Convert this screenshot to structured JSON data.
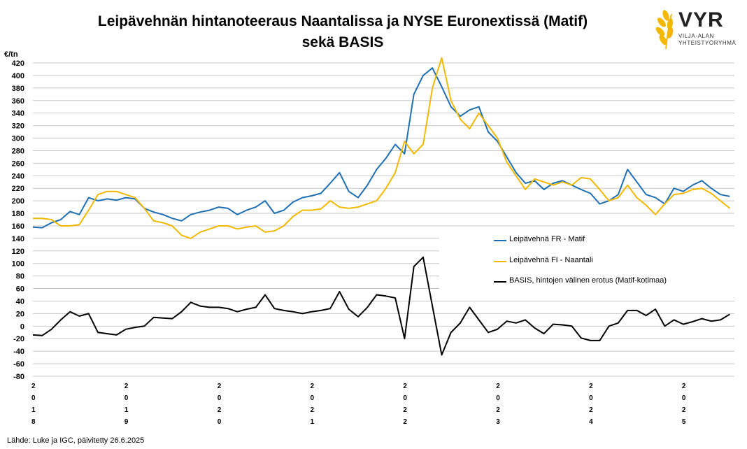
{
  "title_line1": "Leipävehnän hintanoteeraus Naantalissa ja NYSE Euronextissä (Matif)",
  "title_line2": "sekä BASIS",
  "logo": {
    "main": "VYR",
    "sub1": "VILJA-ALAN",
    "sub2": "YHTEISTYÖRYHMÄ",
    "color": "#F5B800"
  },
  "source": "Lähde: Luke ja IGC, päivitetty 26.6.2025",
  "chart_data": {
    "type": "line",
    "title": "Leipävehnän hintanoteeraus Naantalissa ja NYSE Euronextissä (Matif) sekä BASIS",
    "ylabel": "€/tn",
    "xlabel": "",
    "ylim": [
      -80,
      420
    ],
    "yticks": [
      "420",
      "400",
      "380",
      "360",
      "340",
      "320",
      "300",
      "280",
      "260",
      "240",
      "220",
      "200",
      "180",
      "160",
      "140",
      "120",
      "100",
      "80",
      "60",
      "40",
      "20",
      "0",
      "-20",
      "-40",
      "-60",
      "-80"
    ],
    "x_tick_labels": [
      "2018",
      "2019",
      "2020",
      "2021",
      "2022",
      "2023",
      "2024",
      "2025"
    ],
    "x": [
      2018.0,
      2018.1,
      2018.2,
      2018.3,
      2018.4,
      2018.5,
      2018.6,
      2018.7,
      2018.8,
      2018.9,
      2019.0,
      2019.1,
      2019.2,
      2019.3,
      2019.4,
      2019.5,
      2019.6,
      2019.7,
      2019.8,
      2019.9,
      2020.0,
      2020.1,
      2020.2,
      2020.3,
      2020.4,
      2020.5,
      2020.6,
      2020.7,
      2020.8,
      2020.9,
      2021.0,
      2021.1,
      2021.2,
      2021.3,
      2021.4,
      2021.5,
      2021.6,
      2021.7,
      2021.8,
      2021.9,
      2022.0,
      2022.1,
      2022.2,
      2022.3,
      2022.4,
      2022.5,
      2022.6,
      2022.7,
      2022.8,
      2022.9,
      2023.0,
      2023.1,
      2023.2,
      2023.3,
      2023.4,
      2023.5,
      2023.6,
      2023.7,
      2023.8,
      2023.9,
      2024.0,
      2024.1,
      2024.2,
      2024.3,
      2024.4,
      2024.5,
      2024.6,
      2024.7,
      2024.8,
      2024.9,
      2025.0,
      2025.1,
      2025.2,
      2025.3,
      2025.4,
      2025.5
    ],
    "series": [
      {
        "name": "Leipävehnä FR - Matif",
        "color": "#1F6FB5",
        "values": [
          158,
          157,
          165,
          170,
          183,
          178,
          205,
          200,
          203,
          201,
          205,
          203,
          188,
          182,
          178,
          172,
          168,
          178,
          182,
          185,
          190,
          188,
          178,
          185,
          190,
          200,
          180,
          185,
          198,
          205,
          208,
          212,
          228,
          245,
          215,
          205,
          225,
          250,
          268,
          290,
          275,
          370,
          400,
          412,
          382,
          350,
          335,
          345,
          350,
          310,
          295,
          270,
          245,
          228,
          232,
          218,
          228,
          232,
          225,
          218,
          212,
          195,
          200,
          210,
          250,
          230,
          210,
          205,
          195,
          220,
          215,
          225,
          232,
          220,
          210,
          207
        ]
      },
      {
        "name": "Leipävehnä FI - Naantali",
        "color": "#F2B900",
        "values": [
          172,
          172,
          170,
          160,
          160,
          162,
          185,
          210,
          215,
          215,
          210,
          205,
          188,
          168,
          165,
          160,
          145,
          140,
          150,
          155,
          160,
          160,
          155,
          158,
          160,
          150,
          152,
          160,
          175,
          185,
          185,
          187,
          200,
          190,
          188,
          190,
          195,
          200,
          220,
          245,
          295,
          275,
          290,
          380,
          428,
          360,
          330,
          315,
          340,
          320,
          300,
          262,
          240,
          218,
          235,
          230,
          225,
          230,
          225,
          237,
          235,
          218,
          200,
          205,
          225,
          205,
          193,
          178,
          195,
          210,
          212,
          218,
          220,
          212,
          200,
          188
        ]
      },
      {
        "name": "BASIS, hintojen välinen erotus (Matif-kotimaa)",
        "color": "#000000",
        "values": [
          -14,
          -15,
          -5,
          10,
          23,
          16,
          20,
          -10,
          -12,
          -14,
          -5,
          -2,
          0,
          14,
          13,
          12,
          23,
          38,
          32,
          30,
          30,
          28,
          23,
          27,
          30,
          50,
          28,
          25,
          23,
          20,
          23,
          25,
          28,
          55,
          27,
          15,
          30,
          50,
          48,
          45,
          -20,
          95,
          110,
          32,
          -46,
          -10,
          5,
          30,
          10,
          -10,
          -5,
          8,
          5,
          10,
          -3,
          -12,
          3,
          2,
          0,
          -19,
          -23,
          -23,
          0,
          5,
          25,
          25,
          17,
          27,
          0,
          10,
          3,
          7,
          12,
          8,
          10,
          19
        ]
      }
    ]
  }
}
